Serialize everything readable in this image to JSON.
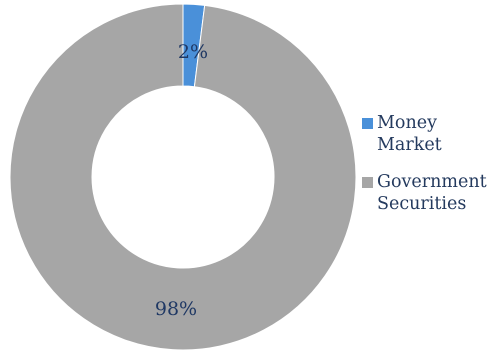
{
  "chart_data": {
    "type": "pie",
    "variant": "donut",
    "title": "",
    "categories": [
      "Money Market",
      "Government Securities"
    ],
    "values": [
      2,
      98
    ],
    "data_labels": [
      "2%",
      "98%"
    ],
    "colors": [
      "#4a90d9",
      "#a6a6a6"
    ],
    "legend": {
      "placement": "right",
      "entries": [
        {
          "label": "Money\nMarket",
          "color": "#4a90d9"
        },
        {
          "label": "Government\nSecurities",
          "color": "#a6a6a6"
        }
      ]
    }
  }
}
